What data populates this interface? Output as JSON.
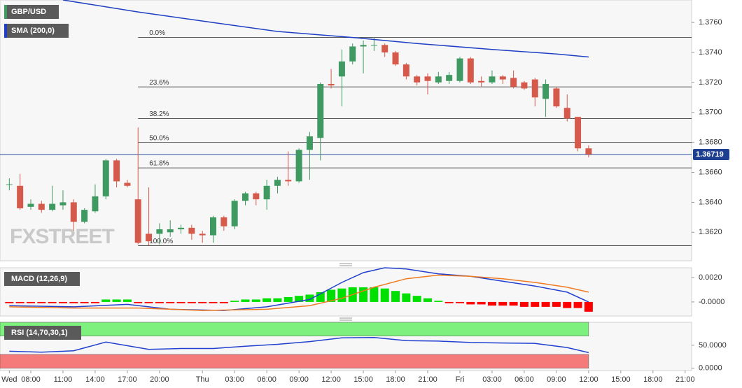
{
  "chart_data": [
    {
      "type": "candlestick",
      "title": "GBP/USD",
      "watermark": "FXSTREET",
      "x": [
        6,
        7,
        8,
        9,
        10,
        11,
        12,
        13,
        14,
        15,
        16,
        17,
        18,
        19,
        20,
        21,
        22,
        23,
        24,
        25,
        26,
        27,
        28,
        29,
        30,
        31,
        32,
        33,
        34,
        35,
        36,
        37,
        38,
        39,
        40,
        41,
        42,
        43,
        44,
        45,
        46,
        47,
        48,
        49,
        50,
        51,
        52,
        53,
        54,
        55,
        56,
        57,
        58,
        59,
        60
      ],
      "open": [
        1.3652,
        1.3651,
        1.3637,
        1.3639,
        1.3635,
        1.3638,
        1.364,
        1.3627,
        1.3634,
        1.3644,
        1.3668,
        1.3653,
        1.3642,
        1.3619,
        1.3619,
        1.362,
        1.3622,
        1.3623,
        1.3619,
        1.3618,
        1.363,
        1.3624,
        1.3641,
        1.3646,
        1.3642,
        1.3651,
        1.3655,
        1.3654,
        1.3675,
        1.3683,
        1.3719,
        1.3724,
        1.3734,
        1.3744,
        1.3745,
        1.3745,
        1.374,
        1.3732,
        1.3724,
        1.3724,
        1.372,
        1.3721,
        1.3721,
        1.3736,
        1.3721,
        1.372,
        1.3724,
        1.3723,
        1.372,
        1.3722,
        1.3709,
        1.3716,
        1.3703,
        1.3697,
        1.3676
      ],
      "high": [
        1.3656,
        1.3659,
        1.3642,
        1.3641,
        1.3651,
        1.3648,
        1.3642,
        1.3636,
        1.3652,
        1.3669,
        1.3669,
        1.3655,
        1.369,
        1.365,
        1.3626,
        1.3628,
        1.3625,
        1.3625,
        1.3621,
        1.3631,
        1.3631,
        1.3642,
        1.3647,
        1.3647,
        1.3655,
        1.3657,
        1.3674,
        1.3676,
        1.3687,
        1.372,
        1.3729,
        1.3742,
        1.3746,
        1.3748,
        1.375,
        1.3746,
        1.3741,
        1.3733,
        1.3725,
        1.3726,
        1.3727,
        1.3727,
        1.3737,
        1.3737,
        1.3724,
        1.3728,
        1.3725,
        1.3728,
        1.3721,
        1.3723,
        1.3722,
        1.3717,
        1.3712,
        1.3697,
        1.3678
      ],
      "low": [
        1.3648,
        1.3635,
        1.3635,
        1.3633,
        1.3634,
        1.3635,
        1.3621,
        1.3626,
        1.3633,
        1.3642,
        1.365,
        1.365,
        1.3612,
        1.3611,
        1.3612,
        1.3617,
        1.3619,
        1.3615,
        1.3613,
        1.3613,
        1.3621,
        1.3622,
        1.3638,
        1.3638,
        1.3635,
        1.3646,
        1.3651,
        1.3653,
        1.3655,
        1.3668,
        1.3716,
        1.3704,
        1.3732,
        1.3726,
        1.3741,
        1.3737,
        1.3731,
        1.3722,
        1.3718,
        1.3712,
        1.3719,
        1.3719,
        1.372,
        1.3719,
        1.3717,
        1.3719,
        1.3719,
        1.3716,
        1.3715,
        1.3704,
        1.3697,
        1.3703,
        1.3694,
        1.3674,
        1.367
      ],
      "close": [
        1.3652,
        1.3636,
        1.3639,
        1.3635,
        1.3639,
        1.364,
        1.3627,
        1.3635,
        1.3644,
        1.3668,
        1.3654,
        1.3651,
        1.3613,
        1.3614,
        1.3622,
        1.3622,
        1.3623,
        1.3619,
        1.3618,
        1.363,
        1.3624,
        1.3641,
        1.3646,
        1.3642,
        1.3651,
        1.3655,
        1.3654,
        1.3675,
        1.3684,
        1.3719,
        1.3718,
        1.3734,
        1.3744,
        1.3745,
        1.3745,
        1.374,
        1.3732,
        1.3724,
        1.372,
        1.3721,
        1.3724,
        1.3725,
        1.3736,
        1.372,
        1.372,
        1.3724,
        1.3722,
        1.3717,
        1.3716,
        1.371,
        1.3719,
        1.3704,
        1.3696,
        1.3676,
        1.3672
      ],
      "up_color": "#3f9a62",
      "down_color": "#d65a4b",
      "series": [
        {
          "name": "SMA (200,0)",
          "color": "#1f3fc4",
          "x": [
            11,
            18,
            25,
            31,
            38,
            44,
            51,
            57,
            60
          ],
          "values": [
            1.3775,
            1.3767,
            1.376,
            1.3754,
            1.375,
            1.3746,
            1.3742,
            1.3739,
            1.3737
          ]
        }
      ],
      "fib_x": 18,
      "fib_levels": [
        {
          "value": 1.375,
          "label": "0.0%"
        },
        {
          "value": 1.3717,
          "label": "23.6%"
        },
        {
          "value": 1.3696,
          "label": "38.2%"
        },
        {
          "value": 1.368,
          "label": "50.0%"
        },
        {
          "value": 1.3663,
          "label": "61.8%"
        },
        {
          "value": 1.3611,
          "label": "100.0%"
        }
      ],
      "last_price": {
        "value": 1.36719,
        "label": "1.36719"
      },
      "xlim": [
        5.13,
        69.6
      ],
      "ylim": [
        1.3601,
        1.3775
      ],
      "yticks": [
        {
          "value": 1.362,
          "label": "1.3620"
        },
        {
          "value": 1.364,
          "label": "1.3640"
        },
        {
          "value": 1.366,
          "label": "1.3660"
        },
        {
          "value": 1.368,
          "label": "1.3680"
        },
        {
          "value": 1.37,
          "label": "1.3700"
        },
        {
          "value": 1.372,
          "label": "1.3720"
        },
        {
          "value": 1.374,
          "label": "1.3740"
        },
        {
          "value": 1.376,
          "label": "1.3760"
        }
      ],
      "xticks": [
        {
          "value": 6,
          "label": "Wed"
        },
        {
          "value": 8,
          "label": "08:00"
        },
        {
          "value": 11,
          "label": "11:00"
        },
        {
          "value": 14,
          "label": "14:00"
        },
        {
          "value": 17,
          "label": "17:00"
        },
        {
          "value": 20,
          "label": "20:00"
        },
        {
          "value": 24,
          "label": "Thu"
        },
        {
          "value": 27,
          "label": "03:00"
        },
        {
          "value": 30,
          "label": "06:00"
        },
        {
          "value": 33,
          "label": "09:00"
        },
        {
          "value": 36,
          "label": "12:00"
        },
        {
          "value": 39,
          "label": "15:00"
        },
        {
          "value": 42,
          "label": "18:00"
        },
        {
          "value": 45,
          "label": "21:00"
        },
        {
          "value": 48,
          "label": "Fri"
        },
        {
          "value": 51,
          "label": "03:00"
        },
        {
          "value": 54,
          "label": "06:00"
        },
        {
          "value": 57,
          "label": "09:00"
        },
        {
          "value": 60,
          "label": "12:00"
        },
        {
          "value": 63,
          "label": "15:00"
        },
        {
          "value": 66,
          "label": "18:00"
        },
        {
          "value": 69,
          "label": "21:00"
        }
      ]
    },
    {
      "type": "bar",
      "title": "MACD (12,26,9)",
      "x": [
        6,
        7,
        8,
        9,
        10,
        11,
        12,
        13,
        14,
        15,
        16,
        17,
        18,
        19,
        20,
        21,
        22,
        23,
        24,
        25,
        26,
        27,
        28,
        29,
        30,
        31,
        32,
        33,
        34,
        35,
        36,
        37,
        38,
        39,
        40,
        41,
        42,
        43,
        44,
        45,
        46,
        47,
        48,
        49,
        50,
        51,
        52,
        53,
        54,
        55,
        56,
        57,
        58,
        59,
        60
      ],
      "values": [
        -0.0001,
        -0.0001,
        -0.0001,
        -0.0001,
        -0.0001,
        -0.0001,
        -0.0001,
        -0.0001,
        -0.0001,
        0.0002,
        0.0002,
        0.0002,
        -0.0001,
        -0.0001,
        -0.0001,
        -0.0001,
        -0.0001,
        -0.0001,
        -0.0001,
        -0.0001,
        -0.0001,
        0.0001,
        0.0002,
        0.0002,
        0.0003,
        0.0003,
        0.0004,
        0.0005,
        0.0006,
        0.0008,
        0.001,
        0.0011,
        0.0012,
        0.0012,
        0.0012,
        0.0011,
        0.0009,
        0.0007,
        0.0005,
        0.0003,
        0.0001,
        -0.0001,
        -0.0001,
        -0.0002,
        -0.0002,
        -0.0003,
        -0.0003,
        -0.0003,
        -0.0004,
        -0.0004,
        -0.0004,
        -0.0004,
        -0.0005,
        -0.0005,
        -0.0008
      ],
      "up_color": "#00e000",
      "down_color": "#ff0000",
      "series": [
        {
          "color": "#2140d0",
          "x": [
            6,
            12,
            17,
            21,
            26,
            30,
            34,
            37,
            39,
            41,
            43,
            46,
            49,
            52,
            55,
            58,
            60
          ],
          "values": [
            -0.0003,
            -0.0004,
            -0.0002,
            -0.0006,
            -0.0007,
            -0.0004,
            0.0002,
            0.0016,
            0.0024,
            0.0028,
            0.0027,
            0.0023,
            0.0021,
            0.0017,
            0.0013,
            0.0008,
            0.0
          ]
        },
        {
          "color": "#f07a20",
          "x": [
            6,
            12,
            18,
            24,
            30,
            34,
            37,
            40,
            43,
            46,
            49,
            52,
            55,
            58,
            60
          ],
          "values": [
            -0.0004,
            -0.0005,
            -0.0005,
            -0.0007,
            -0.0006,
            -0.0003,
            0.0003,
            0.0012,
            0.0019,
            0.0022,
            0.0021,
            0.0019,
            0.0016,
            0.0012,
            0.0008
          ]
        }
      ],
      "ylim": [
        -0.00115,
        0.0028
      ],
      "yticks": [
        {
          "value": 0.002,
          "label": "0.0020"
        },
        {
          "value": 0,
          "label": "-0.0000"
        }
      ]
    },
    {
      "type": "line",
      "title": "RSI (14,70,30,1)",
      "bands": [
        {
          "from": 70,
          "to": 100,
          "color": "#7ef07e"
        },
        {
          "from": 0,
          "to": 30,
          "color": "#f57a7a"
        }
      ],
      "series": [
        {
          "color": "#2140d0",
          "x": [
            6,
            9,
            12,
            15,
            17,
            19,
            22,
            25,
            28,
            31,
            34,
            37,
            40,
            43,
            46,
            49,
            52,
            55,
            58,
            60
          ],
          "values": [
            37,
            35,
            38,
            57,
            49,
            41,
            43,
            43,
            48,
            52,
            58,
            66,
            67,
            60,
            59,
            56,
            55,
            54,
            45,
            34
          ]
        }
      ],
      "ylim": [
        -5,
        100
      ],
      "yticks": [
        {
          "value": 50,
          "label": "50.0000"
        },
        {
          "value": 0,
          "label": "0.0000"
        }
      ]
    }
  ]
}
